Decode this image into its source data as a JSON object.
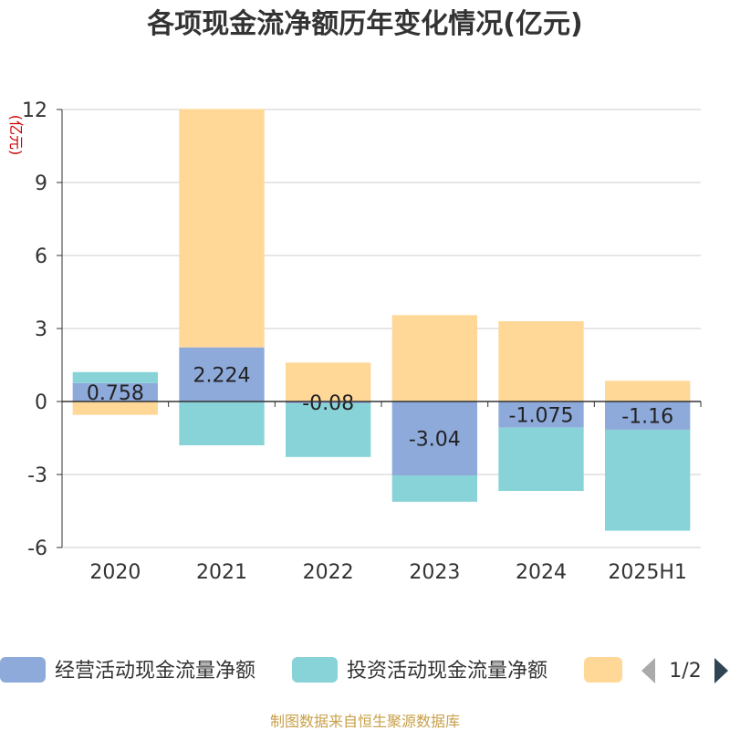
{
  "chart_data": {
    "type": "bar",
    "stacked": true,
    "title": "各项现金流净额历年变化情况(亿元)",
    "ylabel": "(亿元)",
    "categories": [
      "2020",
      "2021",
      "2022",
      "2023",
      "2024",
      "2025H1"
    ],
    "ylim": [
      -6,
      12
    ],
    "yticks": [
      -6,
      -3,
      0,
      3,
      6,
      9,
      12
    ],
    "grid": true,
    "series": [
      {
        "name": "经营活动现金流量净额",
        "color": "#8eaadb",
        "values": [
          0.758,
          2.224,
          -0.08,
          -3.04,
          -1.075,
          -1.16
        ],
        "labels": [
          "0.758",
          "2.224",
          "-0.08",
          "-3.04",
          "-1.075",
          "-1.16"
        ]
      },
      {
        "name": "投资活动现金流量净额",
        "color": "#87d3d7",
        "values": [
          0.45,
          -1.8,
          -2.2,
          -1.08,
          -2.6,
          -4.15
        ]
      },
      {
        "name": "",
        "color": "#ffd898",
        "values": [
          -0.55,
          9.8,
          1.6,
          3.55,
          3.3,
          0.85
        ]
      }
    ],
    "legend_position": "bottom",
    "legend_page": "1/2"
  },
  "footer": {
    "source": "制图数据来自恒生聚源数据库"
  },
  "colors": {
    "title": "#333333",
    "axis_text": "#333333",
    "ylabel": "#cc0000",
    "grid": "#cccccc",
    "footer": "#c8a04a",
    "pager_active": "#2f4554",
    "pager_inactive": "#aaaaaa"
  }
}
